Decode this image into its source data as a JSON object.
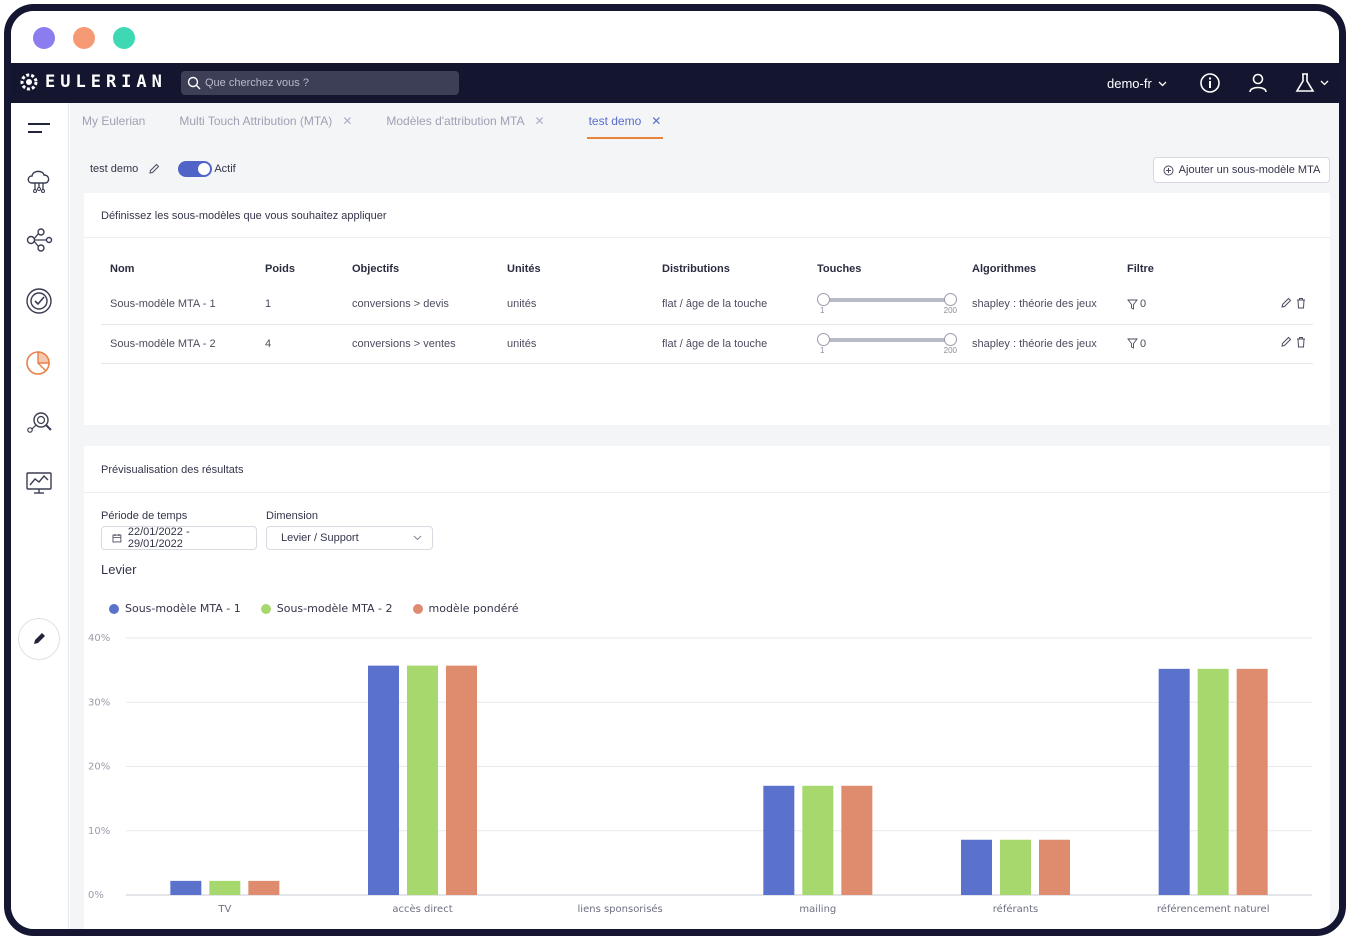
{
  "window": {
    "dots": [
      "#8b7cf0",
      "#f59a74",
      "#3fd8b4"
    ]
  },
  "topbar": {
    "logo": "EULERIAN",
    "search_placeholder": "Que cherchez vous ?",
    "account": "demo-fr"
  },
  "tabs": [
    {
      "label": "My Eulerian",
      "closable": false,
      "active": false
    },
    {
      "label": "Multi Touch Attribution (MTA)",
      "closable": true,
      "active": false
    },
    {
      "label": "Modèles d'attribution MTA",
      "closable": true,
      "active": false
    },
    {
      "label": "test demo",
      "closable": true,
      "active": true
    }
  ],
  "model": {
    "name": "test demo",
    "status": "Actif",
    "add_button": "Ajouter un sous-modèle MTA"
  },
  "submodels": {
    "title": "Définissez les sous-modèles que vous souhaitez appliquer",
    "headers": [
      "Nom",
      "Poids",
      "Objectifs",
      "Unités",
      "Distributions",
      "Touches",
      "Algorithmes",
      "Filtre"
    ],
    "rows": [
      {
        "name": "Sous-modèle MTA - 1",
        "weight": "1",
        "objective": "conversions > devis",
        "unit": "unités",
        "distribution": "flat / âge de la touche",
        "touch_min": "1",
        "touch_max": "200",
        "algorithm": "shapley : théorie des jeux",
        "filter": "0"
      },
      {
        "name": "Sous-modèle MTA - 2",
        "weight": "4",
        "objective": "conversions > ventes",
        "unit": "unités",
        "distribution": "flat / âge de la touche",
        "touch_min": "1",
        "touch_max": "200",
        "algorithm": "shapley : théorie des jeux",
        "filter": "0"
      }
    ]
  },
  "preview": {
    "title": "Prévisualisation des résultats",
    "period_label": "Période de temps",
    "period_value": "22/01/2022 - 29/01/2022",
    "dimension_label": "Dimension",
    "dimension_value": "Levier / Support",
    "section": "Levier"
  },
  "chart_data": {
    "type": "bar",
    "title": "Levier",
    "categories": [
      "TV",
      "accès direct",
      "liens sponsorisés",
      "mailing",
      "référants",
      "référencement naturel"
    ],
    "series": [
      {
        "name": "Sous-modèle MTA - 1",
        "color": "#5b72cc",
        "values": [
          2.2,
          35.7,
          0,
          17.0,
          8.6,
          35.2
        ]
      },
      {
        "name": "Sous-modèle MTA - 2",
        "color": "#a6d86e",
        "values": [
          2.2,
          35.7,
          0,
          17.0,
          8.6,
          35.2
        ]
      },
      {
        "name": "modèle pondéré",
        "color": "#df8b6e",
        "values": [
          2.2,
          35.7,
          0,
          17.0,
          8.6,
          35.2
        ]
      }
    ],
    "y_ticks": [
      "0%",
      "10%",
      "20%",
      "30%",
      "40%"
    ],
    "ylim": [
      0,
      40
    ],
    "grid": true,
    "legend": "top-left"
  }
}
